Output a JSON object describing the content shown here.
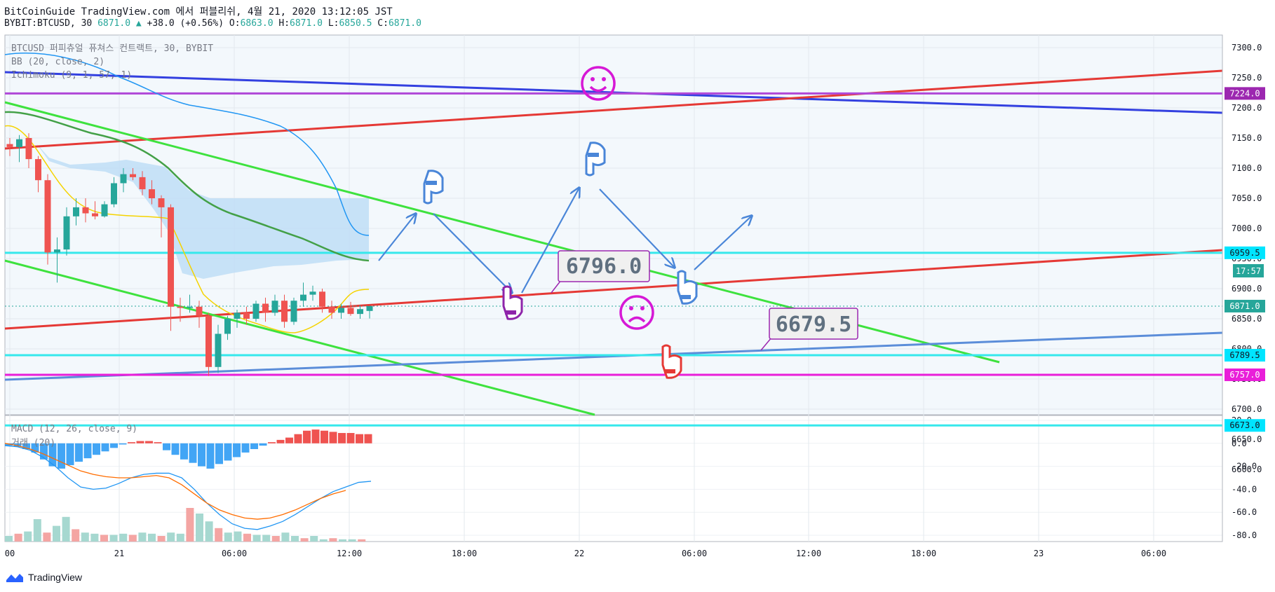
{
  "header": {
    "line1": "BitCoinGuide TradingView.com 에서 퍼블리쉬, 4월 21, 2020 13:12:05 JST",
    "symbol": "BYBIT:BTCUSD, 30",
    "last": "6871.0",
    "change": "+38.0 (+0.56%)",
    "o_label": "O:",
    "o": "6863.0",
    "h_label": "H:",
    "h": "6871.0",
    "l_label": "L:",
    "l": "6850.5",
    "c_label": "C:",
    "c": "6871.0"
  },
  "indicators": {
    "title": "BTCUSD 퍼피츄얼 퓨쳐스 컨트랙트, 30, BYBIT",
    "bb": "BB (20, close, 2)",
    "ichimoku": "Ichimoku (9, 1, 57, 1)",
    "macd": "MACD (12, 26, close, 9)",
    "vol": "거래 (20)"
  },
  "annotations": {
    "label1": "6796.0",
    "label2": "6679.5"
  },
  "price_labels": [
    {
      "value": 7224.0,
      "text": "7224.0",
      "color": "#9c27b0"
    },
    {
      "value": 6959.5,
      "text": "6959.5",
      "color": "#00e5ff"
    },
    {
      "value": 6871.0,
      "text": "6871.0",
      "color": "#26a69a"
    },
    {
      "value": 6789.5,
      "text": "6789.5",
      "color": "#00e5ff"
    },
    {
      "value": 6757.0,
      "text": "6757.0",
      "color": "#e91ed9"
    },
    {
      "value": 6673.0,
      "text": "6673.0",
      "color": "#00e5ff"
    }
  ],
  "countdown": "17:57",
  "brand": "TradingView",
  "chart_data": {
    "type": "candlestick",
    "price_axis": {
      "min": 6600,
      "max": 7300,
      "ticks": [
        "7300.0",
        "7250.0",
        "7200.0",
        "7150.0",
        "7100.0",
        "7050.0",
        "7000.0",
        "6950.0",
        "6900.0",
        "6850.0",
        "6800.0",
        "6750.0",
        "6700.0",
        "6650.0",
        "6600.0"
      ]
    },
    "macd_axis": {
      "min": -80,
      "max": 20,
      "ticks": [
        "20.0",
        "0.0",
        "-20.0",
        "-40.0",
        "-60.0",
        "-80.0"
      ]
    },
    "time_ticks": [
      "00",
      "21",
      "06:00",
      "12:00",
      "18:00",
      "22",
      "06:00",
      "12:00",
      "18:00",
      "23",
      "06:00"
    ],
    "candles": [
      {
        "o": 7140,
        "h": 7150,
        "l": 7120,
        "c": 7135
      },
      {
        "o": 7135,
        "h": 7155,
        "l": 7110,
        "c": 7148
      },
      {
        "o": 7150,
        "h": 7158,
        "l": 7100,
        "c": 7115
      },
      {
        "o": 7115,
        "h": 7120,
        "l": 7060,
        "c": 7080
      },
      {
        "o": 7080,
        "h": 7090,
        "l": 6940,
        "c": 6960
      },
      {
        "o": 6960,
        "h": 6985,
        "l": 6910,
        "c": 6965
      },
      {
        "o": 6965,
        "h": 7035,
        "l": 6955,
        "c": 7020
      },
      {
        "o": 7020,
        "h": 7050,
        "l": 7005,
        "c": 7035
      },
      {
        "o": 7035,
        "h": 7050,
        "l": 7010,
        "c": 7025
      },
      {
        "o": 7025,
        "h": 7045,
        "l": 7015,
        "c": 7020
      },
      {
        "o": 7020,
        "h": 7045,
        "l": 7018,
        "c": 7040
      },
      {
        "o": 7040,
        "h": 7085,
        "l": 7035,
        "c": 7075
      },
      {
        "o": 7075,
        "h": 7100,
        "l": 7060,
        "c": 7090
      },
      {
        "o": 7090,
        "h": 7100,
        "l": 7080,
        "c": 7085
      },
      {
        "o": 7085,
        "h": 7095,
        "l": 7055,
        "c": 7065
      },
      {
        "o": 7065,
        "h": 7080,
        "l": 7040,
        "c": 7050
      },
      {
        "o": 7050,
        "h": 7055,
        "l": 6985,
        "c": 7035
      },
      {
        "o": 7035,
        "h": 7040,
        "l": 6830,
        "c": 6870
      },
      {
        "o": 6870,
        "h": 6885,
        "l": 6845,
        "c": 6868
      },
      {
        "o": 6868,
        "h": 6890,
        "l": 6860,
        "c": 6870
      },
      {
        "o": 6870,
        "h": 6880,
        "l": 6835,
        "c": 6855
      },
      {
        "o": 6855,
        "h": 6860,
        "l": 6755,
        "c": 6770
      },
      {
        "o": 6770,
        "h": 6840,
        "l": 6760,
        "c": 6825
      },
      {
        "o": 6825,
        "h": 6855,
        "l": 6815,
        "c": 6850
      },
      {
        "o": 6850,
        "h": 6865,
        "l": 6835,
        "c": 6860
      },
      {
        "o": 6860,
        "h": 6870,
        "l": 6840,
        "c": 6850
      },
      {
        "o": 6850,
        "h": 6880,
        "l": 6845,
        "c": 6875
      },
      {
        "o": 6875,
        "h": 6885,
        "l": 6845,
        "c": 6860
      },
      {
        "o": 6860,
        "h": 6890,
        "l": 6855,
        "c": 6880
      },
      {
        "o": 6880,
        "h": 6890,
        "l": 6835,
        "c": 6845
      },
      {
        "o": 6845,
        "h": 6885,
        "l": 6840,
        "c": 6880
      },
      {
        "o": 6880,
        "h": 6910,
        "l": 6870,
        "c": 6890
      },
      {
        "o": 6890,
        "h": 6905,
        "l": 6880,
        "c": 6895
      },
      {
        "o": 6895,
        "h": 6900,
        "l": 6860,
        "c": 6870
      },
      {
        "o": 6870,
        "h": 6880,
        "l": 6850,
        "c": 6860
      },
      {
        "o": 6860,
        "h": 6875,
        "l": 6850,
        "c": 6868
      },
      {
        "o": 6868,
        "h": 6878,
        "l": 6855,
        "c": 6858
      },
      {
        "o": 6858,
        "h": 6872,
        "l": 6850,
        "c": 6866
      },
      {
        "o": 6863,
        "h": 6871,
        "l": 6850.5,
        "c": 6871
      }
    ],
    "macd_histogram": [
      -2,
      -3,
      -5,
      -8,
      -14,
      -20,
      -22,
      -19,
      -16,
      -13,
      -10,
      -7,
      -4,
      -1,
      1,
      2,
      2,
      1,
      -6,
      -10,
      -14,
      -17,
      -20,
      -22,
      -18,
      -15,
      -12,
      -8,
      -5,
      -2,
      1,
      3,
      5,
      8,
      11,
      12,
      11,
      10,
      9,
      9,
      8,
      8
    ],
    "macd_line": [
      -2,
      -3,
      -6,
      -12,
      -20,
      -30,
      -38,
      -40,
      -39,
      -35,
      -30,
      -27,
      -26,
      -26,
      -30,
      -40,
      -52,
      -62,
      -70,
      -74,
      -75,
      -72,
      -68,
      -62,
      -55,
      -48,
      -42,
      -38,
      -34,
      -33
    ],
    "signal_line": [
      0,
      -2,
      -5,
      -9,
      -14,
      -19,
      -24,
      -27,
      -29,
      -30,
      -30,
      -29,
      -28,
      -30,
      -36,
      -44,
      -52,
      -58,
      -62,
      -65,
      -66,
      -65,
      -62,
      -58,
      -53,
      -48,
      -44,
      -41
    ],
    "volume": [
      5,
      7,
      9,
      20,
      8,
      14,
      22,
      11,
      8,
      7,
      6,
      6,
      7,
      6,
      8,
      7,
      5,
      8,
      7,
      30,
      25,
      18,
      12,
      8,
      9,
      7,
      6,
      6,
      5,
      8,
      5,
      3,
      5,
      2,
      3,
      2,
      2,
      2
    ]
  }
}
